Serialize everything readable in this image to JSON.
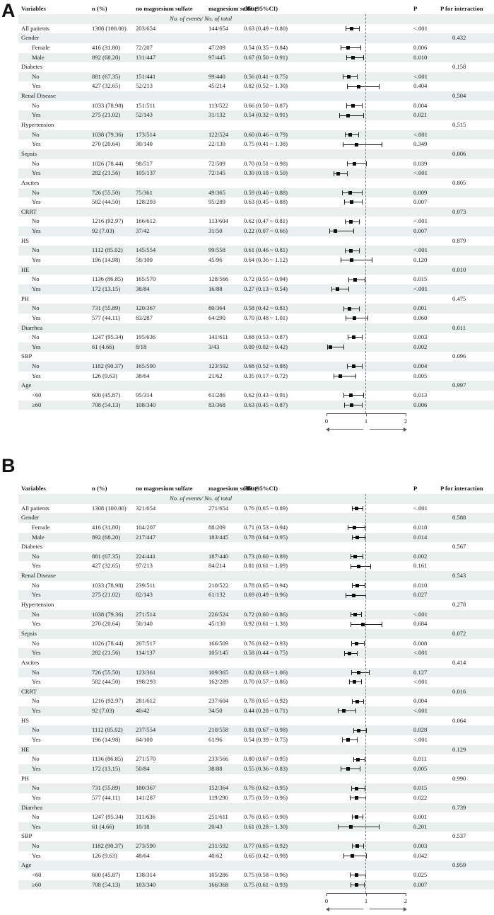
{
  "colors": {
    "stripe": "#e9efef",
    "ink": "#1b1b1b",
    "marker": "#0d0d0d",
    "reference_line": "#808080"
  },
  "chart_data": [
    {
      "type": "forest",
      "panel_label": "A",
      "effect_measure": "OR",
      "columns": {
        "variables": "Variables",
        "n": "n (%)",
        "no_mg": "no magnesium sulfate",
        "mg": "magnesium sulfate",
        "effect": "OR (95%CI)",
        "p": "P",
        "p_interaction": "P for interaction"
      },
      "subheader": "No. of events/ No. of total",
      "axis": {
        "range": [
          0,
          2
        ],
        "tick_labels": [
          "0",
          "1",
          "2"
        ],
        "reference_value": 1
      },
      "rows": [
        {
          "t": "a",
          "label": "All patients",
          "n": "1308 (100.00)",
          "e1": "203/654",
          "e2": "144/654",
          "est": "0.63 (0.49 ~ 0.80)",
          "v": [
            0.63,
            0.49,
            0.8
          ],
          "p": "<.001"
        },
        {
          "t": "g",
          "label": "Gender",
          "pint": "0.432"
        },
        {
          "t": "d",
          "label": "Female",
          "n": "416 (31.80)",
          "e1": "72/207",
          "e2": "47/209",
          "est": "0.54 (0.35 ~ 0.84)",
          "v": [
            0.54,
            0.35,
            0.84
          ],
          "p": "0.006"
        },
        {
          "t": "d",
          "label": "Male",
          "n": "892 (68.20)",
          "e1": "131/447",
          "e2": "97/445",
          "est": "0.67 (0.50 ~ 0.91)",
          "v": [
            0.67,
            0.5,
            0.91
          ],
          "p": "0.010"
        },
        {
          "t": "g",
          "label": "Diabetes",
          "pint": "0.158"
        },
        {
          "t": "d",
          "label": "No",
          "n": "881 (67.35)",
          "e1": "151/441",
          "e2": "99/440",
          "est": "0.56 (0.41 ~ 0.75)",
          "v": [
            0.56,
            0.41,
            0.75
          ],
          "p": "<.001"
        },
        {
          "t": "d",
          "label": "Yes",
          "n": "427 (32.65)",
          "e1": "52/213",
          "e2": "45/214",
          "est": "0.82 (0.52 ~ 1.30)",
          "v": [
            0.82,
            0.52,
            1.3
          ],
          "p": "0.404"
        },
        {
          "t": "g",
          "label": "Renal Disease",
          "pint": "0.504"
        },
        {
          "t": "d",
          "label": "No",
          "n": "1033 (78.98)",
          "e1": "151/511",
          "e2": "113/522",
          "est": "0.66 (0.50 ~ 0.87)",
          "v": [
            0.66,
            0.5,
            0.87
          ],
          "p": "0.004"
        },
        {
          "t": "d",
          "label": "Yes",
          "n": "275 (21.02)",
          "e1": "52/143",
          "e2": "31/132",
          "est": "0.54 (0.32 ~ 0.91)",
          "v": [
            0.54,
            0.32,
            0.91
          ],
          "p": "0.021"
        },
        {
          "t": "g",
          "label": "Hypertension",
          "pint": "0.515"
        },
        {
          "t": "d",
          "label": "No",
          "n": "1038 (79.36)",
          "e1": "173/514",
          "e2": "122/524",
          "est": "0.60 (0.46 ~ 0.79)",
          "v": [
            0.6,
            0.46,
            0.79
          ],
          "p": "<.001"
        },
        {
          "t": "d",
          "label": "Yes",
          "n": "270 (20.64)",
          "e1": "30/140",
          "e2": "22/130",
          "est": "0.75 (0.41 ~ 1.38)",
          "v": [
            0.75,
            0.41,
            1.38
          ],
          "p": "0.349"
        },
        {
          "t": "g",
          "label": "Sepsis",
          "pint": "0.006"
        },
        {
          "t": "d",
          "label": "No",
          "n": "1026 (78.44)",
          "e1": "98/517",
          "e2": "72/509",
          "est": "0.70 (0.51 ~ 0.98)",
          "v": [
            0.7,
            0.51,
            0.98
          ],
          "p": "0.039"
        },
        {
          "t": "d",
          "label": "Yes",
          "n": "282 (21.56)",
          "e1": "105/137",
          "e2": "72/145",
          "est": "0.30 (0.18 ~ 0.50)",
          "v": [
            0.3,
            0.18,
            0.5
          ],
          "p": "<.001"
        },
        {
          "t": "g",
          "label": "Ascites",
          "pint": "0.805"
        },
        {
          "t": "d",
          "label": "No",
          "n": "726 (55.50)",
          "e1": "75/361",
          "e2": "49/365",
          "est": "0.59 (0.40 ~ 0.88)",
          "v": [
            0.59,
            0.4,
            0.88
          ],
          "p": "0.009"
        },
        {
          "t": "d",
          "label": "Yes",
          "n": "582 (44.50)",
          "e1": "128/293",
          "e2": "95/289",
          "est": "0.63 (0.45 ~ 0.88)",
          "v": [
            0.63,
            0.45,
            0.88
          ],
          "p": "0.007"
        },
        {
          "t": "g",
          "label": "CRRT",
          "pint": "0.073"
        },
        {
          "t": "d",
          "label": "No",
          "n": "1216 (92.97)",
          "e1": "166/612",
          "e2": "113/604",
          "est": "0.62 (0.47 ~ 0.81)",
          "v": [
            0.62,
            0.47,
            0.81
          ],
          "p": "<.001"
        },
        {
          "t": "d",
          "label": "Yes",
          "n": "92 (7.03)",
          "e1": "37/42",
          "e2": "31/50",
          "est": "0.22 (0.07 ~ 0.66)",
          "v": [
            0.22,
            0.07,
            0.66
          ],
          "p": "0.007"
        },
        {
          "t": "g",
          "label": "HS",
          "pint": "0.879"
        },
        {
          "t": "d",
          "label": "No",
          "n": "1112 (85.02)",
          "e1": "145/554",
          "e2": "99/558",
          "est": "0.61 (0.46 ~ 0.81)",
          "v": [
            0.61,
            0.46,
            0.81
          ],
          "p": "<.001"
        },
        {
          "t": "d",
          "label": "Yes",
          "n": "196 (14.98)",
          "e1": "58/100",
          "e2": "45/96",
          "est": "0.64 (0.36 ~ 1.12)",
          "v": [
            0.64,
            0.36,
            1.12
          ],
          "p": "0.120"
        },
        {
          "t": "g",
          "label": "HE",
          "pint": "0.010"
        },
        {
          "t": "d",
          "label": "No",
          "n": "1136 (86.85)",
          "e1": "165/570",
          "e2": "128/566",
          "est": "0.72 (0.55 ~ 0.94)",
          "v": [
            0.72,
            0.55,
            0.94
          ],
          "p": "0.015"
        },
        {
          "t": "d",
          "label": "Yes",
          "n": "172 (13.15)",
          "e1": "38/84",
          "e2": "16/88",
          "est": "0.27 (0.13 ~ 0.54)",
          "v": [
            0.27,
            0.13,
            0.54
          ],
          "p": "<.001"
        },
        {
          "t": "g",
          "label": "PH",
          "pint": "0.475"
        },
        {
          "t": "d",
          "label": "No",
          "n": "731 (55.89)",
          "e1": "120/367",
          "e2": "80/364",
          "est": "0.58 (0.42 ~ 0.81)",
          "v": [
            0.58,
            0.42,
            0.81
          ],
          "p": "0.001"
        },
        {
          "t": "d",
          "label": "Yes",
          "n": "577 (44.11)",
          "e1": "83/287",
          "e2": "64/290",
          "est": "0.70 (0.48 ~ 1.01)",
          "v": [
            0.7,
            0.48,
            1.01
          ],
          "p": "0.060"
        },
        {
          "t": "g",
          "label": "Diarrhea",
          "pint": "0.011"
        },
        {
          "t": "d",
          "label": "No",
          "n": "1247 (95.34)",
          "e1": "195/636",
          "e2": "141/611",
          "est": "0.68 (0.53 ~ 0.87)",
          "v": [
            0.68,
            0.53,
            0.87
          ],
          "p": "0.003"
        },
        {
          "t": "d",
          "label": "Yes",
          "n": "61 (4.66)",
          "e1": "8/18",
          "e2": "3/43",
          "est": "0.09 (0.02 ~ 0.42)",
          "v": [
            0.09,
            0.02,
            0.42
          ],
          "p": "0.002"
        },
        {
          "t": "g",
          "label": "SBP",
          "pint": "0.096"
        },
        {
          "t": "d",
          "label": "No",
          "n": "1182 (90.37)",
          "e1": "165/590",
          "e2": "123/592",
          "est": "0.68 (0.52 ~ 0.88)",
          "v": [
            0.68,
            0.52,
            0.88
          ],
          "p": "0.004"
        },
        {
          "t": "d",
          "label": "Yes",
          "n": "126 (9.63)",
          "e1": "38/64",
          "e2": "21/62",
          "est": "0.35 (0.17 ~ 0.72)",
          "v": [
            0.35,
            0.17,
            0.72
          ],
          "p": "0.005"
        },
        {
          "t": "g",
          "label": "Age",
          "pint": "0.997"
        },
        {
          "t": "d",
          "label": "<60",
          "n": "600 (45.87)",
          "e1": "95/314",
          "e2": "61/286",
          "est": "0.62 (0.43 ~ 0.91)",
          "v": [
            0.62,
            0.43,
            0.91
          ],
          "p": "0.013"
        },
        {
          "t": "d",
          "label": "≥60",
          "n": "708 (54.13)",
          "e1": "108/340",
          "e2": "83/368",
          "est": "0.63 (0.45 ~ 0.87)",
          "v": [
            0.63,
            0.45,
            0.87
          ],
          "p": "0.006"
        }
      ]
    },
    {
      "type": "forest",
      "panel_label": "B",
      "effect_measure": "HR",
      "columns": {
        "variables": "Variables",
        "n": "n (%)",
        "no_mg": "no magnesium sulfate",
        "mg": "magnesium sulfate",
        "effect": "HR (95%CI)",
        "p": "P",
        "p_interaction": "P for interaction"
      },
      "subheader": "No. of events/ No. of total",
      "axis": {
        "range": [
          0,
          2
        ],
        "tick_labels": [
          "0",
          "1",
          "2"
        ],
        "reference_value": 1
      },
      "rows": [
        {
          "t": "a",
          "label": "All patients",
          "n": "1308 (100.00)",
          "e1": "321/654",
          "e2": "271/654",
          "est": "0.76 (0.65 ~ 0.89)",
          "v": [
            0.76,
            0.65,
            0.89
          ],
          "p": "<.001"
        },
        {
          "t": "g",
          "label": "Gender",
          "pint": "0.588"
        },
        {
          "t": "d",
          "label": "Female",
          "n": "416 (31.80)",
          "e1": "104/207",
          "e2": "88/209",
          "est": "0.71 (0.53 ~ 0.94)",
          "v": [
            0.71,
            0.53,
            0.94
          ],
          "p": "0.018"
        },
        {
          "t": "d",
          "label": "Male",
          "n": "892 (68.20)",
          "e1": "217/447",
          "e2": "183/445",
          "est": "0.78 (0.64 ~ 0.95)",
          "v": [
            0.78,
            0.64,
            0.95
          ],
          "p": "0.014"
        },
        {
          "t": "g",
          "label": "Diabetes",
          "pint": "0.567"
        },
        {
          "t": "d",
          "label": "No",
          "n": "881 (67.35)",
          "e1": "224/441",
          "e2": "187/440",
          "est": "0.73 (0.60 ~ 0.89)",
          "v": [
            0.73,
            0.6,
            0.89
          ],
          "p": "0.002"
        },
        {
          "t": "d",
          "label": "Yes",
          "n": "427 (32.65)",
          "e1": "97/213",
          "e2": "84/214",
          "est": "0.81 (0.61 ~ 1.09)",
          "v": [
            0.81,
            0.61,
            1.09
          ],
          "p": "0.161"
        },
        {
          "t": "g",
          "label": "Renal Disease",
          "pint": "0.543"
        },
        {
          "t": "d",
          "label": "No",
          "n": "1033 (78.98)",
          "e1": "239/511",
          "e2": "210/522",
          "est": "0.78 (0.65 ~ 0.94)",
          "v": [
            0.78,
            0.65,
            0.94
          ],
          "p": "0.010"
        },
        {
          "t": "d",
          "label": "Yes",
          "n": "275 (21.02)",
          "e1": "82/143",
          "e2": "61/132",
          "est": "0.69 (0.49 ~ 0.96)",
          "v": [
            0.69,
            0.49,
            0.96
          ],
          "p": "0.027"
        },
        {
          "t": "g",
          "label": "Hypertension",
          "pint": "0.278"
        },
        {
          "t": "d",
          "label": "No",
          "n": "1038 (79.36)",
          "e1": "271/514",
          "e2": "226/524",
          "est": "0.72 (0.60 ~ 0.86)",
          "v": [
            0.72,
            0.6,
            0.86
          ],
          "p": "<.001"
        },
        {
          "t": "d",
          "label": "Yes",
          "n": "270 (20.64)",
          "e1": "50/140",
          "e2": "45/130",
          "est": "0.92 (0.61 ~ 1.38)",
          "v": [
            0.92,
            0.61,
            1.38
          ],
          "p": "0.684"
        },
        {
          "t": "g",
          "label": "Sepsis",
          "pint": "0.072"
        },
        {
          "t": "d",
          "label": "No",
          "n": "1026 (78.44)",
          "e1": "207/517",
          "e2": "166/509",
          "est": "0.76 (0.62 ~ 0.93)",
          "v": [
            0.76,
            0.62,
            0.93
          ],
          "p": "0.008"
        },
        {
          "t": "d",
          "label": "Yes",
          "n": "282 (21.56)",
          "e1": "114/137",
          "e2": "105/145",
          "est": "0.58 (0.44 ~ 0.75)",
          "v": [
            0.58,
            0.44,
            0.75
          ],
          "p": "<.001"
        },
        {
          "t": "g",
          "label": "Ascites",
          "pint": "0.414"
        },
        {
          "t": "d",
          "label": "No",
          "n": "726 (55.50)",
          "e1": "123/361",
          "e2": "109/365",
          "est": "0.82 (0.63 ~ 1.06)",
          "v": [
            0.82,
            0.63,
            1.06
          ],
          "p": "0.127"
        },
        {
          "t": "d",
          "label": "Yes",
          "n": "582 (44.50)",
          "e1": "198/293",
          "e2": "162/289",
          "est": "0.70 (0.57 ~ 0.86)",
          "v": [
            0.7,
            0.57,
            0.86
          ],
          "p": "<.001"
        },
        {
          "t": "g",
          "label": "CRRT",
          "pint": "0.016"
        },
        {
          "t": "d",
          "label": "No",
          "n": "1216 (92.97)",
          "e1": "281/612",
          "e2": "237/604",
          "est": "0.78 (0.65 ~ 0.92)",
          "v": [
            0.78,
            0.65,
            0.92
          ],
          "p": "0.004"
        },
        {
          "t": "d",
          "label": "Yes",
          "n": "92 (7.03)",
          "e1": "40/42",
          "e2": "34/50",
          "est": "0.44 (0.28 ~ 0.71)",
          "v": [
            0.44,
            0.28,
            0.71
          ],
          "p": "<.001"
        },
        {
          "t": "g",
          "label": "HS",
          "pint": "0.064"
        },
        {
          "t": "d",
          "label": "No",
          "n": "1112 (85.02)",
          "e1": "237/554",
          "e2": "210/558",
          "est": "0.81 (0.67 ~ 0.98)",
          "v": [
            0.81,
            0.67,
            0.98
          ],
          "p": "0.028"
        },
        {
          "t": "d",
          "label": "Yes",
          "n": "196 (14.98)",
          "e1": "84/100",
          "e2": "61/96",
          "est": "0.54 (0.39 ~ 0.75)",
          "v": [
            0.54,
            0.39,
            0.75
          ],
          "p": "<.001"
        },
        {
          "t": "g",
          "label": "HE",
          "pint": "0.129"
        },
        {
          "t": "d",
          "label": "No",
          "n": "1136 (86.85)",
          "e1": "271/570",
          "e2": "233/566",
          "est": "0.80 (0.67 ~ 0.95)",
          "v": [
            0.8,
            0.67,
            0.95
          ],
          "p": "0.011"
        },
        {
          "t": "d",
          "label": "Yes",
          "n": "172 (13.15)",
          "e1": "50/84",
          "e2": "38/88",
          "est": "0.55 (0.36 ~ 0.83)",
          "v": [
            0.55,
            0.36,
            0.83
          ],
          "p": "0.005"
        },
        {
          "t": "g",
          "label": "PH",
          "pint": "0.990"
        },
        {
          "t": "d",
          "label": "No",
          "n": "731 (55.89)",
          "e1": "180/367",
          "e2": "152/364",
          "est": "0.76 (0.62 ~ 0.95)",
          "v": [
            0.76,
            0.62,
            0.95
          ],
          "p": "0.015"
        },
        {
          "t": "d",
          "label": "Yes",
          "n": "577 (44.11)",
          "e1": "141/287",
          "e2": "119/290",
          "est": "0.75 (0.59 ~ 0.96)",
          "v": [
            0.75,
            0.59,
            0.96
          ],
          "p": "0.022"
        },
        {
          "t": "g",
          "label": "Diarrhea",
          "pint": "0.739"
        },
        {
          "t": "d",
          "label": "No",
          "n": "1247 (95.34)",
          "e1": "311/636",
          "e2": "251/611",
          "est": "0.76 (0.65 ~ 0.90)",
          "v": [
            0.76,
            0.65,
            0.9
          ],
          "p": "0.001"
        },
        {
          "t": "d",
          "label": "Yes",
          "n": "61 (4.66)",
          "e1": "10/18",
          "e2": "20/43",
          "est": "0.61 (0.28 ~ 1.30)",
          "v": [
            0.61,
            0.28,
            1.3
          ],
          "p": "0.201"
        },
        {
          "t": "g",
          "label": "SBP",
          "pint": "0.537"
        },
        {
          "t": "d",
          "label": "No",
          "n": "1182 (90.37)",
          "e1": "273/590",
          "e2": "231/592",
          "est": "0.77 (0.65 ~ 0.92)",
          "v": [
            0.77,
            0.65,
            0.92
          ],
          "p": "0.003"
        },
        {
          "t": "d",
          "label": "Yes",
          "n": "126 (9.63)",
          "e1": "48/64",
          "e2": "40/62",
          "est": "0.65 (0.42 ~ 0.98)",
          "v": [
            0.65,
            0.42,
            0.98
          ],
          "p": "0.042"
        },
        {
          "t": "g",
          "label": "Age",
          "pint": "0.959"
        },
        {
          "t": "d",
          "label": "<60",
          "n": "600 (45.87)",
          "e1": "138/314",
          "e2": "105/286",
          "est": "0.75 (0.58 ~ 0.96)",
          "v": [
            0.75,
            0.58,
            0.96
          ],
          "p": "0.025"
        },
        {
          "t": "d",
          "label": "≥60",
          "n": "708 (54.13)",
          "e1": "183/340",
          "e2": "166/368",
          "est": "0.75 (0.61 ~ 0.93)",
          "v": [
            0.75,
            0.61,
            0.93
          ],
          "p": "0.007"
        }
      ]
    }
  ]
}
